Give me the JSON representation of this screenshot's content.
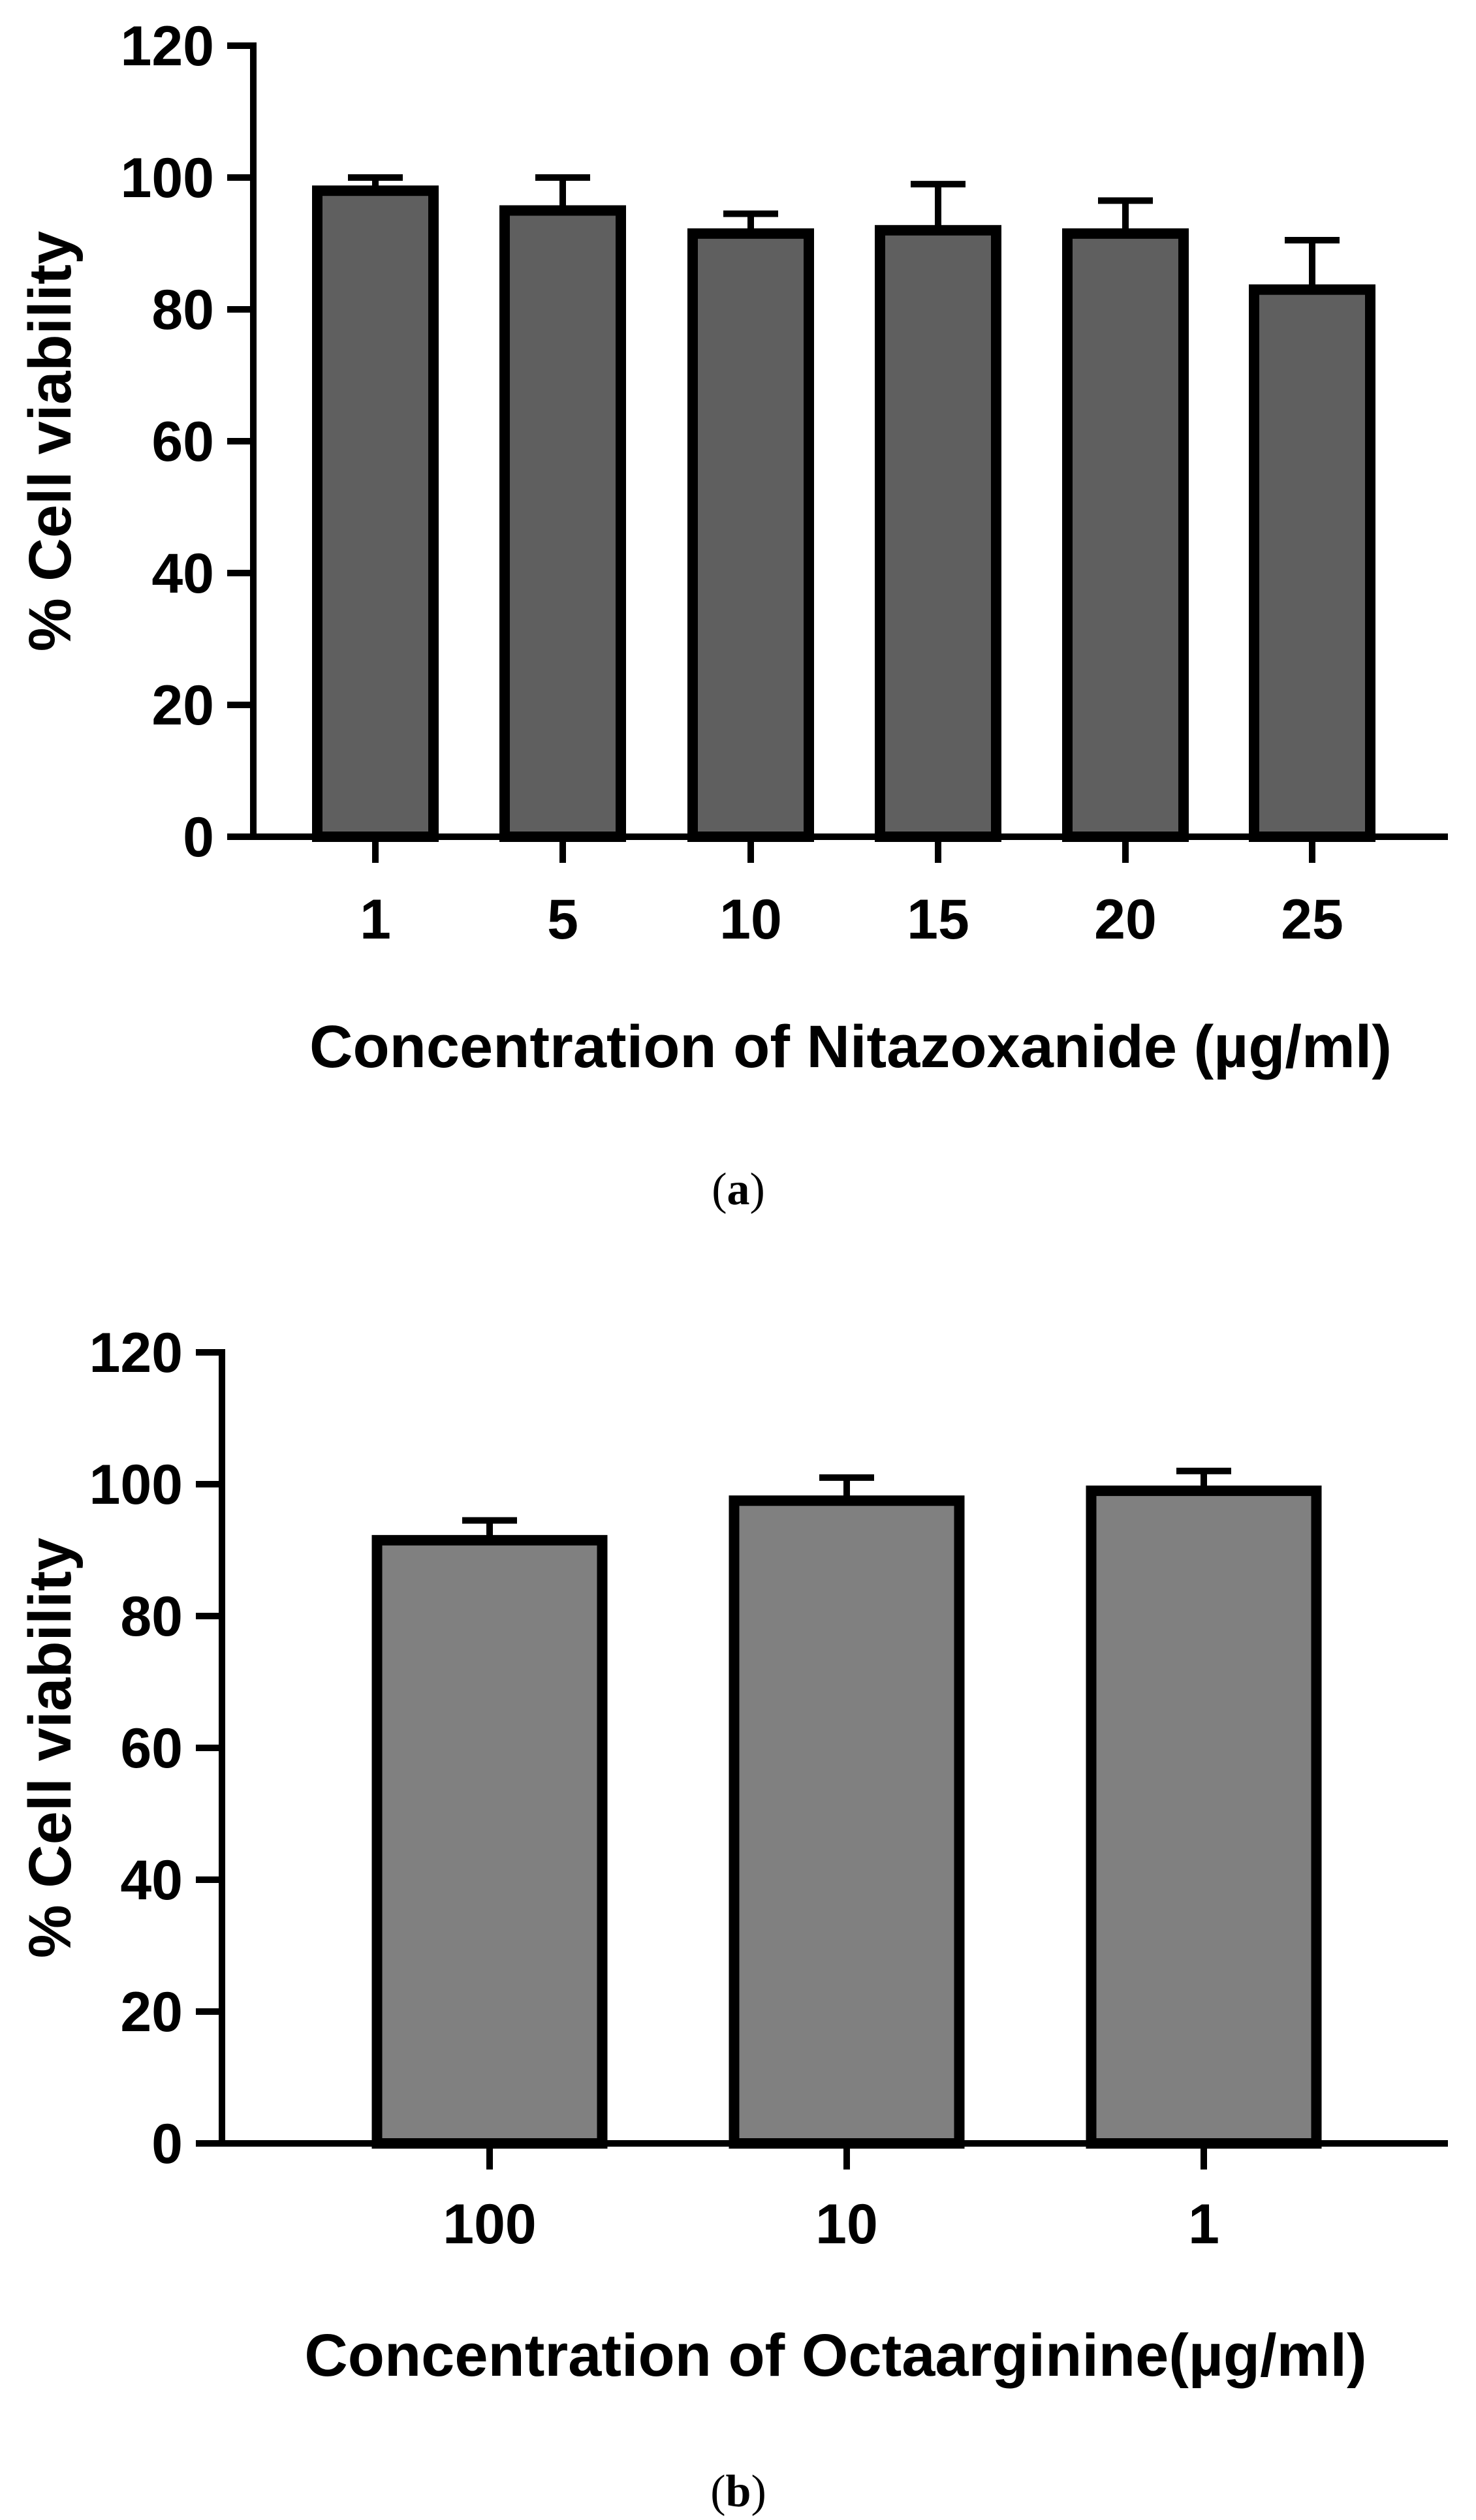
{
  "chart_data": [
    {
      "type": "bar",
      "panel_label": "a",
      "title": "",
      "xlabel": "Concentration of Nitazoxanide (µg/ml)",
      "ylabel": "% Cell viability",
      "categories": [
        "1",
        "5",
        "10",
        "15",
        "20",
        "25"
      ],
      "values": [
        98,
        95,
        91.5,
        92,
        91.5,
        83
      ],
      "error_upper": [
        2,
        5,
        3,
        7,
        5,
        7.5
      ],
      "ylim": [
        0,
        120
      ],
      "yticks": [
        0,
        20,
        40,
        60,
        80,
        100,
        120
      ],
      "bar_color": "#5f5f5f",
      "edge_color": "#000000",
      "grid": false
    },
    {
      "type": "bar",
      "panel_label": "b",
      "title": "",
      "xlabel": "Concentration of Octaarginine(µg/ml)",
      "ylabel": "% Cell viability",
      "categories": [
        "100",
        "10",
        "1"
      ],
      "values": [
        91.5,
        97.5,
        99
      ],
      "error_upper": [
        3,
        3.5,
        3
      ],
      "ylim": [
        0,
        120
      ],
      "yticks": [
        0,
        20,
        40,
        60,
        80,
        100,
        120
      ],
      "bar_color": "#808080",
      "edge_color": "#000000",
      "grid": false
    }
  ]
}
